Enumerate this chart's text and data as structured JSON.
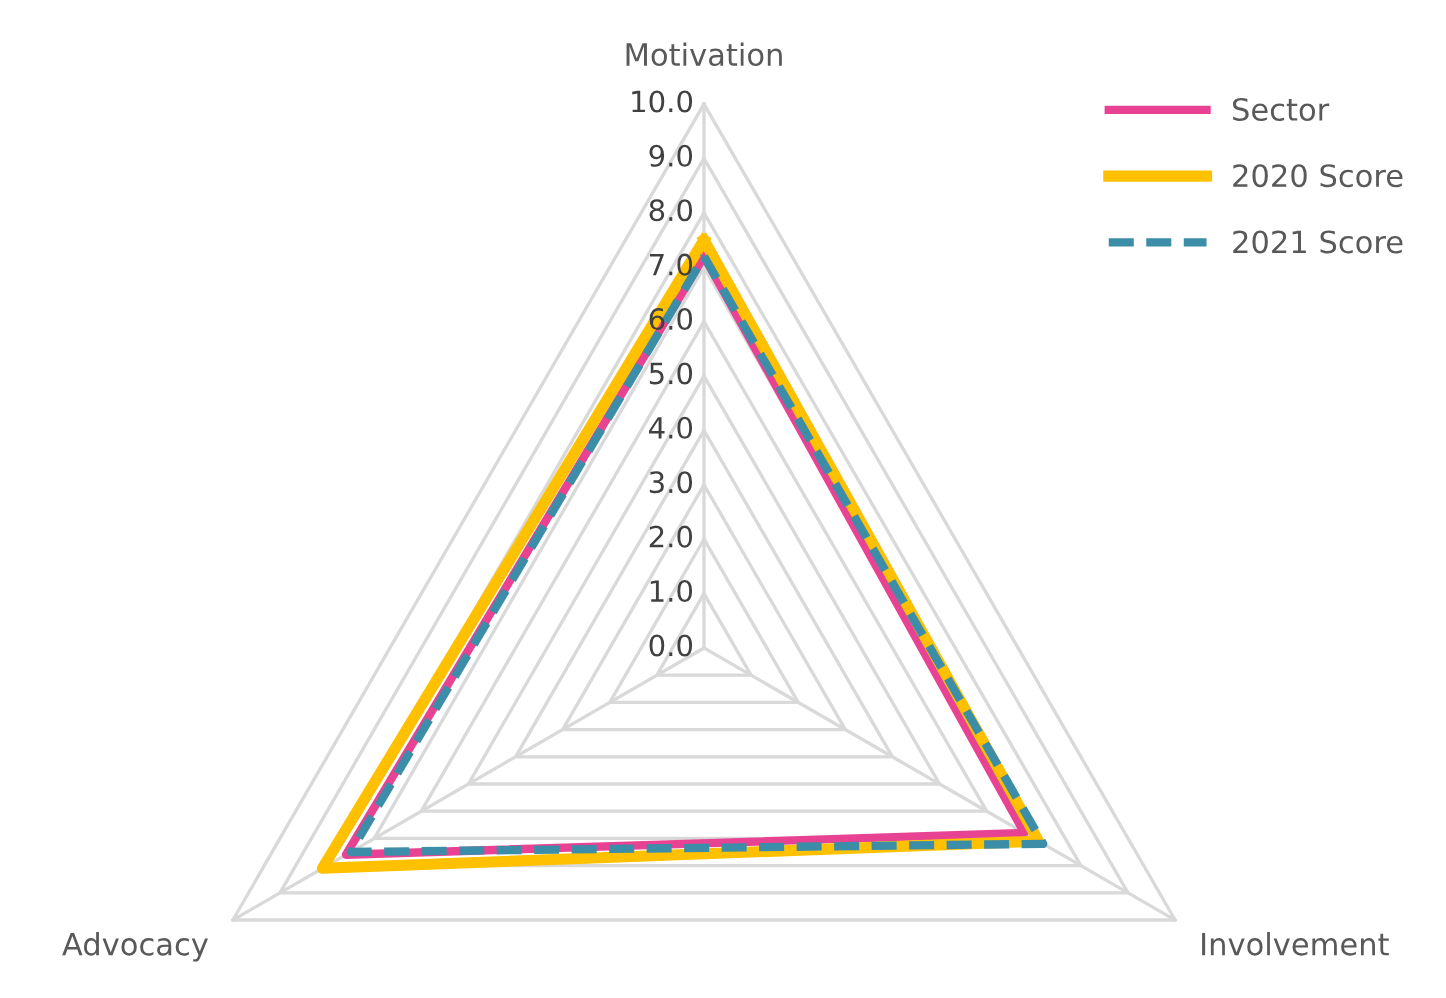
{
  "chart_data": {
    "type": "radar",
    "categories": [
      "Motivation",
      "Involvement",
      "Advocacy"
    ],
    "ylim": [
      0,
      10
    ],
    "yticks": [
      {
        "value": 0,
        "label": "0.0"
      },
      {
        "value": 1,
        "label": "1.0"
      },
      {
        "value": 2,
        "label": "2.0"
      },
      {
        "value": 3,
        "label": "3.0"
      },
      {
        "value": 4,
        "label": "4.0"
      },
      {
        "value": 5,
        "label": "5.0"
      },
      {
        "value": 6,
        "label": "6.0"
      },
      {
        "value": 7,
        "label": "7.0"
      },
      {
        "value": 8,
        "label": "8.0"
      },
      {
        "value": 9,
        "label": "9.0"
      },
      {
        "value": 10,
        "label": "10.0"
      }
    ],
    "grid": true,
    "legend": "top right",
    "marker": "none",
    "series": [
      {
        "name": "Sector",
        "color": "#e84393",
        "values": [
          7.2,
          6.8,
          7.6
        ],
        "line_style": "solid"
      },
      {
        "name": "2020 Score",
        "color": "#ffc000",
        "values": [
          7.5,
          7.1,
          8.1
        ],
        "line_style": "solid"
      },
      {
        "name": "2021 Score",
        "color": "#3c8da8",
        "values": [
          7.2,
          7.2,
          7.5
        ],
        "line_style": "dashed"
      }
    ]
  }
}
